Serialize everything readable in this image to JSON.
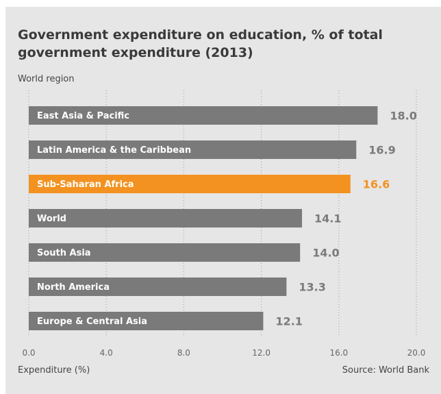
{
  "chart_data": {
    "type": "bar",
    "orientation": "horizontal",
    "title": "Government expenditure on education, % of total government expenditure (2013)",
    "ylabel": "World region",
    "xlabel": "Expenditure (%)",
    "source": "Source: World Bank",
    "xlim": [
      0,
      20
    ],
    "xticks": [
      "0.0",
      "4.0",
      "8.0",
      "12.0",
      "16.0",
      "20.0"
    ],
    "grid": "vertical dotted",
    "categories": [
      "East Asia & Pacific",
      "Latin America & the Caribbean",
      "Sub-Saharan Africa",
      "World",
      "South Asia",
      "North America",
      "Europe & Central Asia"
    ],
    "values": [
      18.0,
      16.9,
      16.6,
      14.1,
      14.0,
      13.3,
      12.1
    ],
    "value_labels": [
      "18.0",
      "16.9",
      "16.6",
      "14.1",
      "14.0",
      "13.3",
      "12.1"
    ],
    "highlight": "Sub-Saharan Africa",
    "colors": {
      "bar": "#7a7a7a",
      "highlight": "#f39220",
      "value_label": "#7a7a7a"
    }
  }
}
